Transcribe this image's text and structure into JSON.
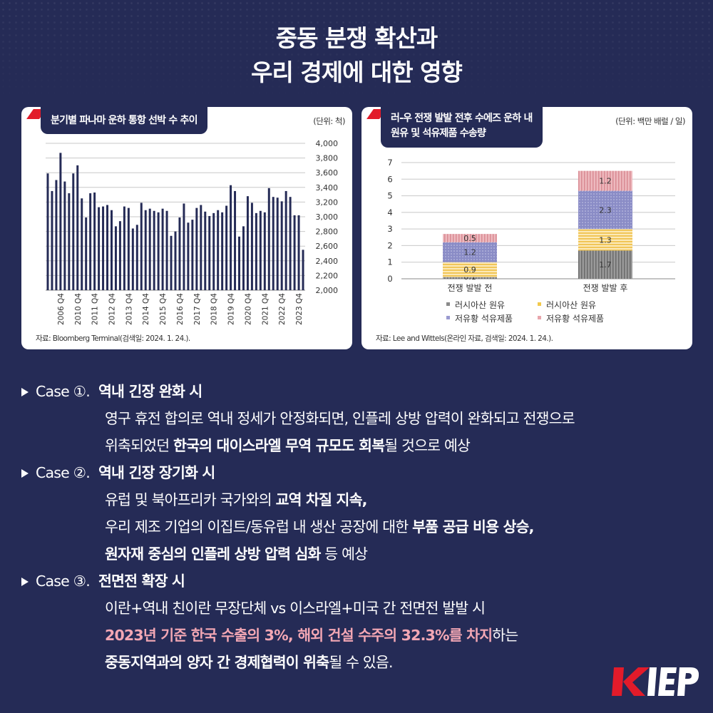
{
  "title": {
    "line1": "중동 분쟁 확산과",
    "line2": "우리 경제에 대한 영향"
  },
  "panel_left": {
    "tag": "분기별 파나마 운하 통항 선박 수 추이",
    "unit": "(단위: 척)",
    "source": "자료: Bloomberg Terminal(검색일: 2024. 1. 24.)."
  },
  "panel_right": {
    "tag_line1": "러-우 전쟁 발발 전후 수에즈 운하 내",
    "tag_line2": "원유 및 석유제품 수송량",
    "unit": "(단위: 백만 배럴 / 일)",
    "source": "자료: Lee and Wittels(온라인 자료, 검색일: 2024. 1. 24.)."
  },
  "chart_data": [
    {
      "type": "bar",
      "title": "분기별 파나마 운하 통항 선박 수 추이",
      "unit": "(단위: 척)",
      "ylim": [
        2000,
        4000
      ],
      "yticks": [
        "2,000",
        "2,200",
        "2,400",
        "2,600",
        "2,800",
        "3,000",
        "3,200",
        "3,400",
        "3,600",
        "3,800",
        "4,000"
      ],
      "xticks": [
        "2006 Q4",
        "2010 Q4",
        "2011 Q4",
        "2012 Q4",
        "2013 Q4",
        "2014 Q4",
        "2015 Q4",
        "2016 Q4",
        "2017 Q4",
        "2018 Q4",
        "2019 Q4",
        "2020 Q4",
        "2021 Q4",
        "2022 Q4",
        "2023 Q4"
      ],
      "tick_bar_index": [
        3,
        7,
        11,
        15,
        19,
        23,
        27,
        31,
        35,
        39,
        43,
        47,
        51,
        55,
        59
      ],
      "grid": true,
      "values": [
        3590,
        3350,
        3500,
        3870,
        3480,
        3320,
        3590,
        3700,
        3250,
        2990,
        3320,
        3330,
        3130,
        3140,
        3160,
        3090,
        2870,
        2940,
        3140,
        3120,
        2840,
        2890,
        3190,
        3090,
        3110,
        3080,
        3060,
        3110,
        3080,
        2740,
        2800,
        2990,
        3180,
        2920,
        2960,
        3120,
        3160,
        3070,
        3010,
        3050,
        3090,
        3060,
        3150,
        3430,
        3350,
        2730,
        2870,
        3280,
        3190,
        3050,
        3080,
        3060,
        3390,
        3270,
        3260,
        3210,
        3350,
        3270,
        3020,
        3020,
        2550
      ]
    },
    {
      "type": "bar",
      "stacked": true,
      "title": "러-우 전쟁 발발 전후 수에즈 운하 내 원유 및 석유제품 수송량",
      "unit": "(단위: 백만 배럴 / 일)",
      "categories": [
        "전쟁 발발 전",
        "전쟁 발발 후"
      ],
      "ylim": [
        0,
        7
      ],
      "yticks": [
        "0",
        "1",
        "2",
        "3",
        "4",
        "5",
        "6",
        "7"
      ],
      "grid": true,
      "legend_position": "bottom",
      "series": [
        {
          "name": "러시아산 원유",
          "values": [
            0.1,
            1.7
          ],
          "labels": [
            "0.1",
            "1.7"
          ],
          "color": "#8a8a8a"
        },
        {
          "name": "러시아산 원유",
          "values": [
            0.9,
            1.3
          ],
          "labels": [
            "0.9",
            "1.3"
          ],
          "color": "#f5d67a"
        },
        {
          "name": "저유황 석유제품",
          "values": [
            1.2,
            2.3
          ],
          "labels": [
            "1.2",
            "2.3"
          ],
          "color": "#8f8fc8"
        },
        {
          "name": "저유황 석유제품",
          "values": [
            0.5,
            1.2
          ],
          "labels": [
            "0.5",
            "1.2"
          ],
          "color": "#e8a6ac"
        }
      ]
    }
  ],
  "cases": [
    {
      "label": "Case ①.",
      "title": "역내 긴장 완화 시",
      "lines": [
        [
          {
            "t": "영구 휴전 합의로 역내 정세가 안정화되면, 인플레 상방 압력이 완화되고 전쟁으로",
            "s": ""
          }
        ],
        [
          {
            "t": "위축되었던 ",
            "s": ""
          },
          {
            "t": "한국의 대이스라엘 무역 규모도 회복",
            "s": "b"
          },
          {
            "t": "될 것으로 예상",
            "s": ""
          }
        ]
      ]
    },
    {
      "label": "Case ②.",
      "title": "역내 긴장 장기화 시",
      "lines": [
        [
          {
            "t": "유럽 및 북아프리카 국가와의 ",
            "s": ""
          },
          {
            "t": "교역 차질 지속,",
            "s": "b"
          }
        ],
        [
          {
            "t": "우리 제조 기업의 이집트/동유럽 내 생산 공장에 대한 ",
            "s": ""
          },
          {
            "t": "부품 공급 비용 상승,",
            "s": "b"
          }
        ],
        [
          {
            "t": "원자재 중심의 인플레 상방 압력 심화",
            "s": "b"
          },
          {
            "t": " 등 예상",
            "s": ""
          }
        ]
      ]
    },
    {
      "label": "Case ③.",
      "title": "전면전 확장 시",
      "lines": [
        [
          {
            "t": "이란+역내 친이란 무장단체 vs 이스라엘+미국 간 전면전 발발 시",
            "s": ""
          }
        ],
        [
          {
            "t": "2023년 기준 한국 수출의 3%, 해외 건설 수주의 32.3%를 차지",
            "s": "pink"
          },
          {
            "t": "하는",
            "s": ""
          }
        ],
        [
          {
            "t": "중동지역과의 양자 간 경제협력이 위축",
            "s": "b"
          },
          {
            "t": "될 수 있음.",
            "s": ""
          }
        ]
      ]
    }
  ],
  "logo": {
    "text": "KIEP",
    "colors": {
      "k": "#e21b2a",
      "rest": "#ffffff"
    }
  }
}
